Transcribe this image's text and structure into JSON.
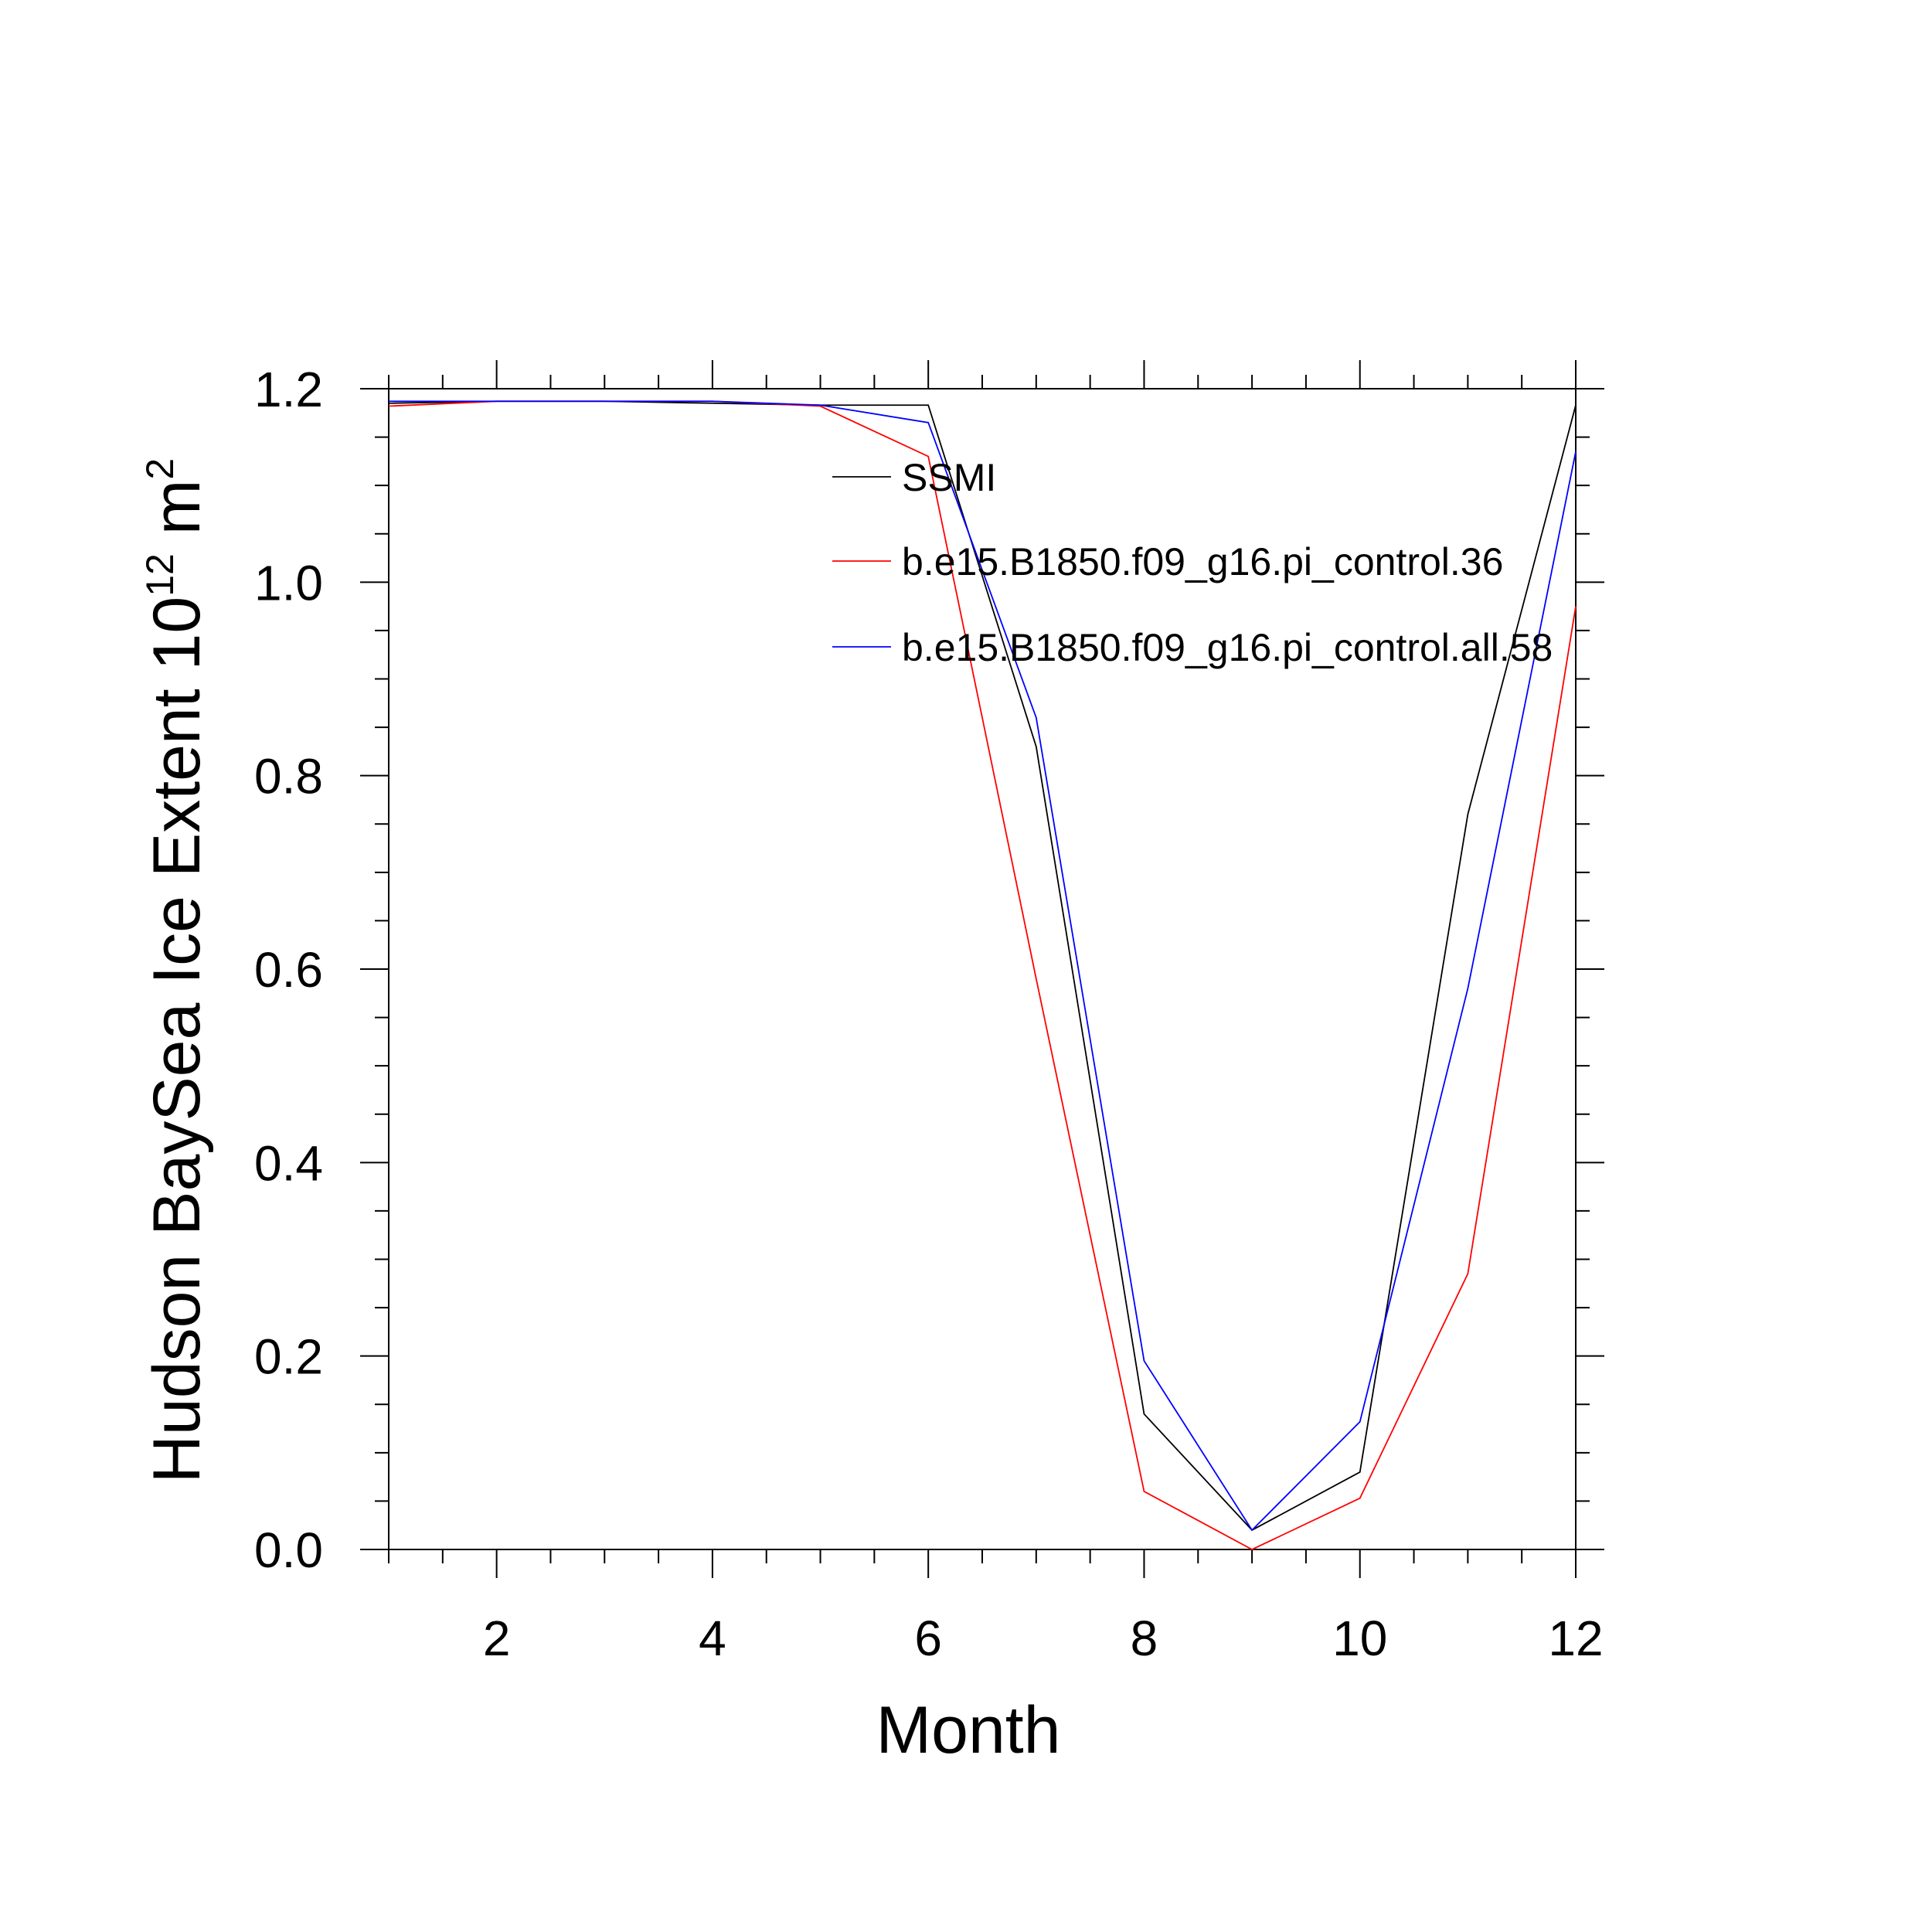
{
  "chart_data": {
    "type": "line",
    "xlabel": "Month",
    "ylabel": {
      "main": "Hudson BaySea Ice Extent 10",
      "exp1": "12",
      "unit": " m",
      "exp2": "2"
    },
    "xlim": [
      1,
      12
    ],
    "ylim": [
      0,
      1.2
    ],
    "x_ticks": [
      2,
      4,
      6,
      8,
      10,
      12
    ],
    "x_tick_labels": [
      "2",
      "4",
      "6",
      "8",
      "10",
      "12"
    ],
    "y_ticks": [
      0,
      0.2,
      0.4,
      0.6,
      0.8,
      1.0,
      1.2
    ],
    "y_tick_labels": [
      "0.0",
      "0.2",
      "0.4",
      "0.6",
      "0.8",
      "1.0",
      "1.2"
    ],
    "legend_position": "top-right inside plot",
    "x": [
      1,
      2,
      3,
      4,
      5,
      6,
      7,
      8,
      9,
      10,
      11,
      12
    ],
    "series": [
      {
        "name": "SSMI",
        "color": "#000000",
        "values": [
          1.185,
          1.187,
          1.187,
          1.185,
          1.183,
          1.183,
          0.83,
          0.14,
          0.02,
          0.08,
          0.76,
          1.183
        ]
      },
      {
        "name": "b.e15.B1850.f09_g16.pi_control.36",
        "color": "#ff0000",
        "values": [
          1.182,
          1.187,
          1.187,
          1.187,
          1.182,
          1.13,
          0.59,
          0.06,
          0.0,
          0.053,
          0.285,
          0.975
        ]
      },
      {
        "name": "b.e15.B1850.f09_g16.pi_control.all.58",
        "color": "#0000ff",
        "values": [
          1.187,
          1.187,
          1.187,
          1.187,
          1.183,
          1.165,
          0.86,
          0.195,
          0.02,
          0.132,
          0.58,
          1.135
        ]
      }
    ]
  }
}
